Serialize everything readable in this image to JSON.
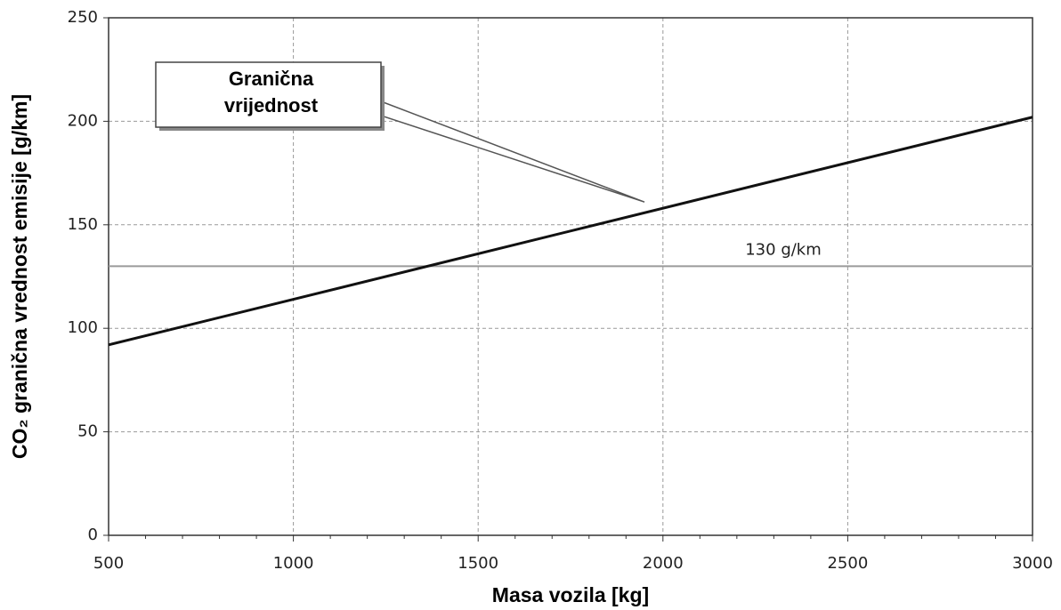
{
  "chart_data": {
    "type": "line",
    "x_label": "Masa vozila [kg]",
    "y_label": "CO₂ granična vrednost emisije [g/km]",
    "x": [
      500,
      3000
    ],
    "series": [
      {
        "color": "#111111",
        "values": [
          92,
          202
        ]
      }
    ],
    "xlim": [
      500,
      3000
    ],
    "xticks": [
      500,
      1000,
      1500,
      2000,
      2500,
      3000
    ],
    "ylim": [
      0,
      250
    ],
    "yticks": [
      0,
      50,
      100,
      150,
      200,
      250
    ],
    "grid": true,
    "hlines": [
      {
        "value": 130,
        "label": "130 g/km",
        "color": "#9a9a9a"
      }
    ],
    "annotation": {
      "text_lines": [
        "Granična",
        "vrijednost"
      ],
      "x": 1950,
      "y": 161
    }
  }
}
